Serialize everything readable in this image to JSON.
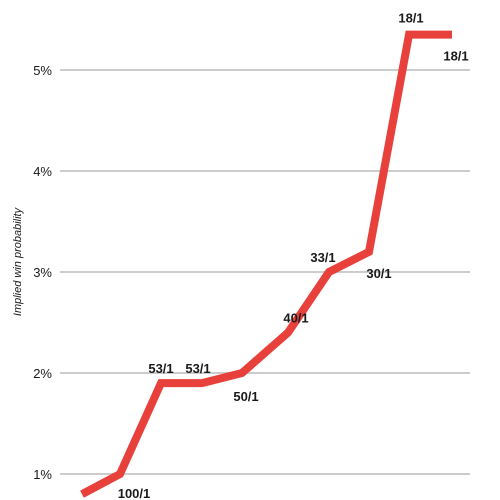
{
  "chart_data": {
    "type": "line",
    "title": "",
    "xlabel": "",
    "ylabel": "Implied win probability",
    "ylim": [
      0.9,
      5.4
    ],
    "grid": true,
    "y_ticks": [
      {
        "value": 1,
        "label": "1%"
      },
      {
        "value": 2,
        "label": "2%"
      },
      {
        "value": 3,
        "label": "3%"
      },
      {
        "value": 4,
        "label": "4%"
      },
      {
        "value": 5,
        "label": "5%"
      }
    ],
    "x": [
      0,
      1,
      2,
      3,
      4,
      5,
      6,
      7,
      8,
      9,
      10
    ],
    "series": [
      {
        "color": "#e8413c",
        "values": [
          0.8,
          1.0,
          1.9,
          1.9,
          2.0,
          2.4,
          3.0,
          3.2,
          5.35,
          5.35,
          5.35
        ],
        "labels": [
          "",
          "100/1",
          "53/1",
          "53/1",
          "50/1",
          "40/1",
          "33/1",
          "30/1",
          "18/1",
          "",
          "18/1"
        ]
      }
    ]
  }
}
